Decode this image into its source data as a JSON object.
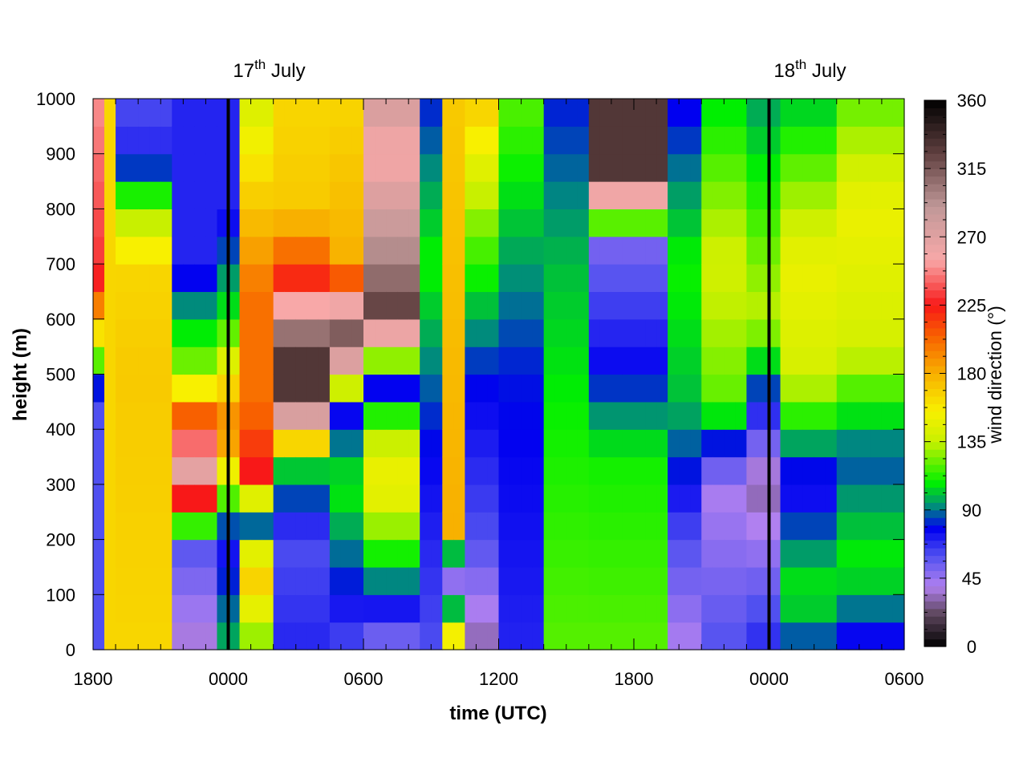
{
  "chart_data": {
    "type": "heatmap",
    "xlabel": "time (UTC)",
    "ylabel": "height (m)",
    "colorbar_label": "wind direction (°)",
    "x_hours": [
      0,
      36
    ],
    "x_ticks": [
      {
        "hour": 0,
        "label": "1800"
      },
      {
        "hour": 6,
        "label": "0000"
      },
      {
        "hour": 12,
        "label": "0600"
      },
      {
        "hour": 18,
        "label": "1200"
      },
      {
        "hour": 24,
        "label": "1800"
      },
      {
        "hour": 30,
        "label": "0000"
      },
      {
        "hour": 36,
        "label": "0600"
      }
    ],
    "ylim": [
      0,
      1000
    ],
    "y_ticks": [
      0,
      100,
      200,
      300,
      400,
      500,
      600,
      700,
      800,
      900,
      1000
    ],
    "colorbar_range": [
      0,
      360
    ],
    "colorbar_ticks": [
      0,
      45,
      90,
      135,
      180,
      225,
      270,
      315,
      360
    ],
    "day_markers": [
      {
        "hour": 6,
        "day": "17",
        "suffix": "th",
        "month": "July"
      },
      {
        "hour": 30,
        "day": "18",
        "suffix": "th",
        "month": "July"
      }
    ],
    "colormap": [
      {
        "v": 0,
        "c": "#000000"
      },
      {
        "v": 22,
        "c": "#604860"
      },
      {
        "v": 40,
        "c": "#b080f0"
      },
      {
        "v": 60,
        "c": "#5050f0"
      },
      {
        "v": 78,
        "c": "#0000f0"
      },
      {
        "v": 92,
        "c": "#008880"
      },
      {
        "v": 108,
        "c": "#00f000"
      },
      {
        "v": 135,
        "c": "#c8f000"
      },
      {
        "v": 155,
        "c": "#f8f000"
      },
      {
        "v": 180,
        "c": "#f8b000"
      },
      {
        "v": 205,
        "c": "#f86000"
      },
      {
        "v": 225,
        "c": "#f81818"
      },
      {
        "v": 255,
        "c": "#f8a8a8"
      },
      {
        "v": 290,
        "c": "#c09898"
      },
      {
        "v": 325,
        "c": "#604040"
      },
      {
        "v": 360,
        "c": "#000000"
      }
    ],
    "grid_columns_per_hour": 2,
    "grid_levels": 20,
    "direction_bands": [
      {
        "start_hour": 0.0,
        "end_hour": 0.5,
        "profile": [
          [
            0,
            60
          ],
          [
            450,
            60
          ],
          [
            600,
            180
          ],
          [
            680,
            230
          ],
          [
            850,
            240
          ],
          [
            1000,
            250
          ]
        ]
      },
      {
        "start_hour": 0.5,
        "end_hour": 1.0,
        "profile": [
          [
            0,
            165
          ],
          [
            1000,
            165
          ]
        ]
      },
      {
        "start_hour": 1.0,
        "end_hour": 3.5,
        "profile": [
          [
            0,
            165
          ],
          [
            500,
            170
          ],
          [
            700,
            165
          ],
          [
            800,
            125
          ],
          [
            900,
            70
          ],
          [
            1000,
            60
          ]
        ]
      },
      {
        "start_hour": 3.5,
        "end_hour": 5.5,
        "profile": [
          [
            0,
            35
          ],
          [
            200,
            60
          ],
          [
            300,
            280
          ],
          [
            400,
            230
          ],
          [
            500,
            130
          ],
          [
            700,
            70
          ],
          [
            1000,
            70
          ]
        ]
      },
      {
        "start_hour": 5.5,
        "end_hour": 6.5,
        "profile": [
          [
            0,
            100
          ],
          [
            200,
            70
          ],
          [
            400,
            200
          ],
          [
            600,
            110
          ],
          [
            800,
            70
          ],
          [
            1000,
            70
          ]
        ]
      },
      {
        "start_hour": 6.5,
        "end_hour": 8.0,
        "profile": [
          [
            0,
            120
          ],
          [
            150,
            175
          ],
          [
            250,
            60
          ],
          [
            300,
            230
          ],
          [
            450,
            200
          ],
          [
            650,
            200
          ],
          [
            750,
            180
          ],
          [
            1000,
            140
          ]
        ]
      },
      {
        "start_hour": 8.0,
        "end_hour": 10.5,
        "profile": [
          [
            0,
            70
          ],
          [
            200,
            60
          ],
          [
            350,
            110
          ],
          [
            450,
            330
          ],
          [
            550,
            330
          ],
          [
            650,
            230
          ],
          [
            800,
            170
          ],
          [
            1000,
            165
          ]
        ]
      },
      {
        "start_hour": 10.5,
        "end_hour": 12.0,
        "profile": [
          [
            0,
            60
          ],
          [
            300,
            110
          ],
          [
            450,
            70
          ],
          [
            550,
            340
          ],
          [
            700,
            180
          ],
          [
            1000,
            165
          ]
        ]
      },
      {
        "start_hour": 12.0,
        "end_hour": 14.5,
        "profile": [
          [
            0,
            45
          ],
          [
            200,
            120
          ],
          [
            300,
            155
          ],
          [
            400,
            130
          ],
          [
            500,
            60
          ],
          [
            600,
            330
          ],
          [
            700,
            300
          ],
          [
            900,
            255
          ],
          [
            1000,
            280
          ]
        ]
      },
      {
        "start_hour": 14.5,
        "end_hour": 15.5,
        "profile": [
          [
            0,
            60
          ],
          [
            400,
            80
          ],
          [
            700,
            110
          ],
          [
            1000,
            80
          ]
        ]
      },
      {
        "start_hour": 15.5,
        "end_hour": 16.5,
        "profile": [
          [
            0,
            180
          ],
          [
            150,
            20
          ],
          [
            200,
            180
          ],
          [
            1000,
            170
          ]
        ]
      },
      {
        "start_hour": 16.5,
        "end_hour": 18.0,
        "profile": [
          [
            0,
            30
          ],
          [
            200,
            60
          ],
          [
            500,
            80
          ],
          [
            800,
            130
          ],
          [
            1000,
            170
          ]
        ]
      },
      {
        "start_hour": 18.0,
        "end_hour": 20.0,
        "profile": [
          [
            0,
            70
          ],
          [
            500,
            80
          ],
          [
            700,
            95
          ],
          [
            1000,
            120
          ]
        ]
      },
      {
        "start_hour": 20.0,
        "end_hour": 22.0,
        "profile": [
          [
            0,
            120
          ],
          [
            400,
            110
          ],
          [
            700,
            100
          ],
          [
            1000,
            80
          ]
        ]
      },
      {
        "start_hour": 22.0,
        "end_hour": 25.5,
        "profile": [
          [
            0,
            120
          ],
          [
            350,
            110
          ],
          [
            500,
            78
          ],
          [
            750,
            50
          ],
          [
            850,
            330
          ],
          [
            1000,
            330
          ]
        ]
      },
      {
        "start_hour": 25.5,
        "end_hour": 27.0,
        "profile": [
          [
            0,
            40
          ],
          [
            200,
            60
          ],
          [
            450,
            100
          ],
          [
            700,
            110
          ],
          [
            1000,
            75
          ]
        ]
      },
      {
        "start_hour": 27.0,
        "end_hour": 29.0,
        "profile": [
          [
            0,
            60
          ],
          [
            300,
            40
          ],
          [
            450,
            120
          ],
          [
            700,
            140
          ],
          [
            1000,
            105
          ]
        ]
      },
      {
        "start_hour": 29.0,
        "end_hour": 30.5,
        "profile": [
          [
            0,
            70
          ],
          [
            300,
            30
          ],
          [
            450,
            75
          ],
          [
            600,
            135
          ],
          [
            1000,
            95
          ]
        ]
      },
      {
        "start_hour": 30.5,
        "end_hour": 33.0,
        "profile": [
          [
            0,
            80
          ],
          [
            100,
            110
          ],
          [
            300,
            70
          ],
          [
            500,
            140
          ],
          [
            700,
            150
          ],
          [
            1000,
            100
          ]
        ]
      },
      {
        "start_hour": 33.0,
        "end_hour": 36.0,
        "profile": [
          [
            0,
            70
          ],
          [
            150,
            110
          ],
          [
            350,
            85
          ],
          [
            550,
            140
          ],
          [
            800,
            150
          ],
          [
            1000,
            120
          ]
        ]
      }
    ]
  }
}
